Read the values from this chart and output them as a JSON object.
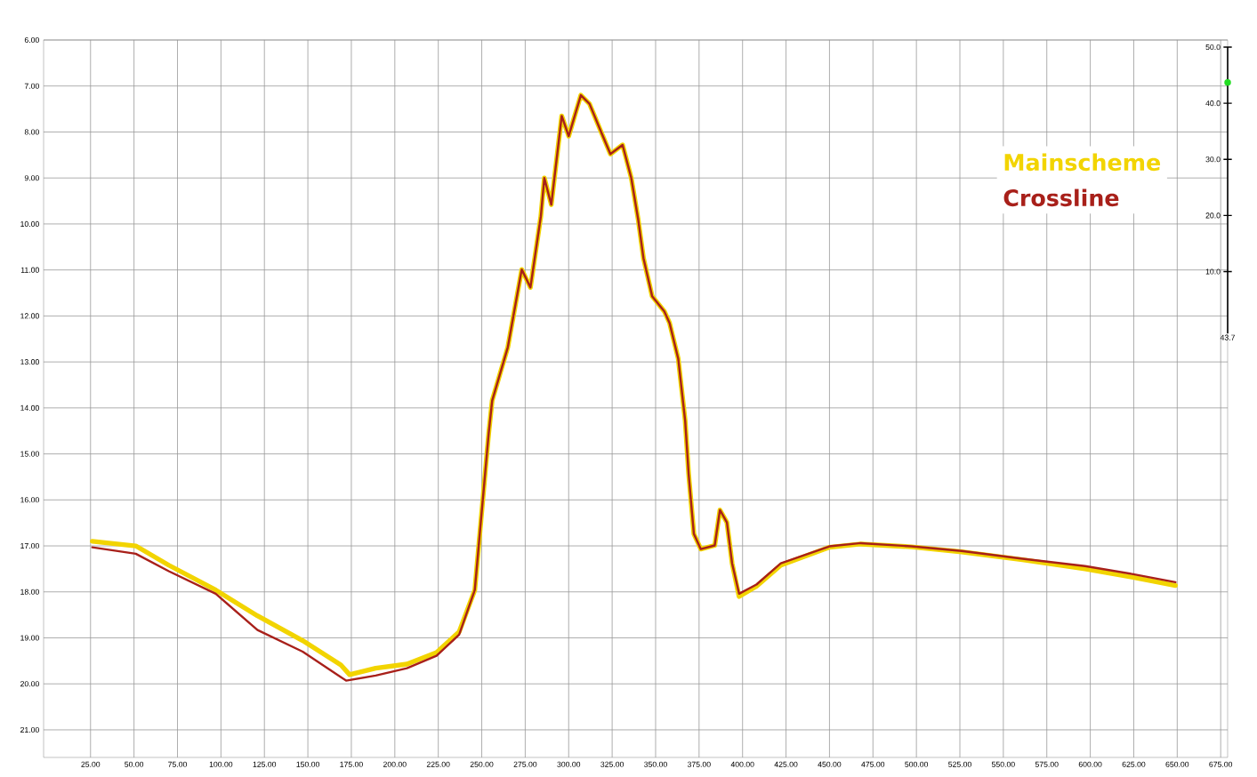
{
  "chart_data": {
    "type": "line",
    "series": [
      {
        "name": "Mainscheme",
        "color": "#f2d400",
        "x": [
          26,
          51,
          70,
          97,
          121,
          147,
          169,
          174,
          189,
          207,
          224,
          237,
          246,
          254,
          256,
          265,
          273,
          278,
          284,
          286,
          290,
          296,
          300,
          307,
          312,
          319,
          324,
          331,
          336,
          340,
          343,
          348,
          355,
          358,
          363,
          367,
          369,
          372,
          376,
          384,
          387,
          391,
          394,
          398,
          408,
          422,
          450,
          468,
          497,
          526,
          561,
          597,
          624,
          649
        ],
        "values": [
          16.9,
          17.0,
          17.42,
          17.96,
          18.52,
          19.06,
          19.59,
          19.8,
          19.66,
          19.57,
          19.32,
          18.87,
          17.96,
          14.55,
          13.84,
          12.68,
          10.99,
          11.38,
          9.83,
          9.0,
          9.58,
          7.65,
          8.09,
          7.2,
          7.39,
          8.03,
          8.48,
          8.28,
          9.0,
          9.91,
          10.74,
          11.57,
          11.9,
          12.15,
          12.93,
          14.28,
          15.44,
          16.74,
          17.07,
          16.99,
          16.22,
          16.49,
          17.38,
          18.1,
          17.88,
          17.42,
          17.03,
          16.96,
          17.02,
          17.13,
          17.3,
          17.5,
          17.68,
          17.86
        ]
      },
      {
        "name": "Crossline",
        "color": "#a8201a",
        "x": [
          26,
          51,
          70,
          97,
          121,
          147,
          172,
          189,
          207,
          224,
          237,
          246,
          254,
          256,
          265,
          273,
          278,
          284,
          286,
          290,
          296,
          300,
          307,
          312,
          319,
          324,
          331,
          336,
          340,
          343,
          348,
          355,
          358,
          363,
          367,
          369,
          372,
          376,
          384,
          387,
          391,
          394,
          398,
          408,
          422,
          450,
          468,
          497,
          526,
          561,
          597,
          624,
          649
        ],
        "values": [
          17.03,
          17.17,
          17.55,
          18.04,
          18.83,
          19.3,
          19.93,
          19.82,
          19.66,
          19.39,
          18.93,
          17.96,
          14.55,
          13.84,
          12.68,
          10.99,
          11.38,
          9.83,
          9.0,
          9.58,
          7.65,
          8.09,
          7.2,
          7.39,
          8.03,
          8.48,
          8.28,
          9.0,
          9.91,
          10.74,
          11.57,
          11.9,
          12.15,
          12.93,
          14.28,
          15.44,
          16.74,
          17.07,
          16.99,
          16.22,
          16.49,
          17.38,
          18.04,
          17.84,
          17.38,
          17.01,
          16.94,
          17.01,
          17.11,
          17.28,
          17.44,
          17.61,
          17.79
        ]
      },
      {
        "type": "scatter",
        "axis": "y2",
        "color": "#22dd22",
        "x": [
          679
        ],
        "values": [
          43.7
        ]
      }
    ],
    "xlim": [
      -2,
      679
    ],
    "ylim": [
      21.6,
      6
    ],
    "y2lim": [
      -1,
      50
    ],
    "xticks": [
      {
        "value": 25,
        "label": "25.00"
      },
      {
        "value": 50,
        "label": "50.00"
      },
      {
        "value": 75,
        "label": "75.00"
      },
      {
        "value": 100,
        "label": "100.00"
      },
      {
        "value": 125,
        "label": "125.00"
      },
      {
        "value": 150,
        "label": "150.00"
      },
      {
        "value": 175,
        "label": "175.00"
      },
      {
        "value": 200,
        "label": "200.00"
      },
      {
        "value": 225,
        "label": "225.00"
      },
      {
        "value": 250,
        "label": "250.00"
      },
      {
        "value": 275,
        "label": "275.00"
      },
      {
        "value": 300,
        "label": "300.00"
      },
      {
        "value": 325,
        "label": "325.00"
      },
      {
        "value": 350,
        "label": "350.00"
      },
      {
        "value": 375,
        "label": "375.00"
      },
      {
        "value": 400,
        "label": "400.00"
      },
      {
        "value": 425,
        "label": "425.00"
      },
      {
        "value": 450,
        "label": "450.00"
      },
      {
        "value": 475,
        "label": "475.00"
      },
      {
        "value": 500,
        "label": "500.00"
      },
      {
        "value": 525,
        "label": "525.00"
      },
      {
        "value": 550,
        "label": "550.00"
      },
      {
        "value": 575,
        "label": "575.00"
      },
      {
        "value": 600,
        "label": "600.00"
      },
      {
        "value": 625,
        "label": "625.00"
      },
      {
        "value": 650,
        "label": "650.00"
      },
      {
        "value": 675,
        "label": "675.00"
      }
    ],
    "yticks": [
      {
        "value": 6,
        "label": "6.00"
      },
      {
        "value": 7,
        "label": "7.00"
      },
      {
        "value": 8,
        "label": "8.00"
      },
      {
        "value": 9,
        "label": "9.00"
      },
      {
        "value": 10,
        "label": "10.00"
      },
      {
        "value": 11,
        "label": "11.00"
      },
      {
        "value": 12,
        "label": "12.00"
      },
      {
        "value": 13,
        "label": "13.00"
      },
      {
        "value": 14,
        "label": "14.00"
      },
      {
        "value": 15,
        "label": "15.00"
      },
      {
        "value": 16,
        "label": "16.00"
      },
      {
        "value": 17,
        "label": "17.00"
      },
      {
        "value": 18,
        "label": "18.00"
      },
      {
        "value": 19,
        "label": "19.00"
      },
      {
        "value": 20,
        "label": "20.00"
      },
      {
        "value": 21,
        "label": "21.00"
      }
    ],
    "y2ticks": [
      {
        "value": 10,
        "label": "10.0"
      },
      {
        "value": 20,
        "label": "20.0"
      },
      {
        "value": 30,
        "label": "30.0"
      },
      {
        "value": 40,
        "label": "40.0"
      },
      {
        "value": 50,
        "label": "50.0"
      }
    ],
    "annotations": [
      "43.7"
    ],
    "grid": true,
    "legend": "top right"
  }
}
